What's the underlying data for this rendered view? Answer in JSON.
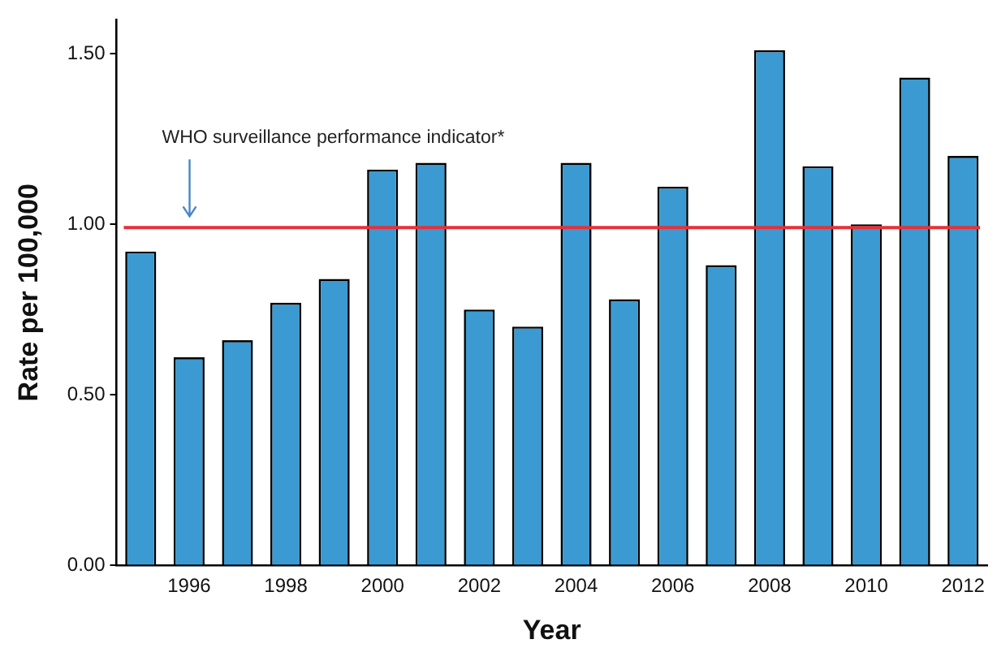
{
  "chart_data": {
    "type": "bar",
    "xlabel": "Year",
    "ylabel": "Rate per 100,000",
    "categories": [
      null,
      "1996",
      null,
      "1998",
      null,
      "2000",
      null,
      "2002",
      null,
      "2004",
      null,
      "2006",
      null,
      "2008",
      null,
      "2010",
      null,
      "2012"
    ],
    "values": [
      0.92,
      0.61,
      0.66,
      0.77,
      0.84,
      1.16,
      1.18,
      0.75,
      0.7,
      1.18,
      0.78,
      1.11,
      0.88,
      1.51,
      1.17,
      1.0,
      1.43,
      1.2
    ],
    "color": "#3a9ad1",
    "ylim": [
      0,
      1.6
    ],
    "yticks": [
      {
        "value": 0,
        "label": "0.00"
      },
      {
        "value": 0.5,
        "label": "0.50"
      },
      {
        "value": 1,
        "label": "1.00"
      },
      {
        "value": 1.5,
        "label": "1.50"
      }
    ],
    "ref_lines": [
      {
        "axis": "y",
        "value": 0.99,
        "color": "#e8303a"
      }
    ],
    "annotations": [
      "WHO surveillance performance indicator*"
    ],
    "grid": false,
    "legend": false
  }
}
